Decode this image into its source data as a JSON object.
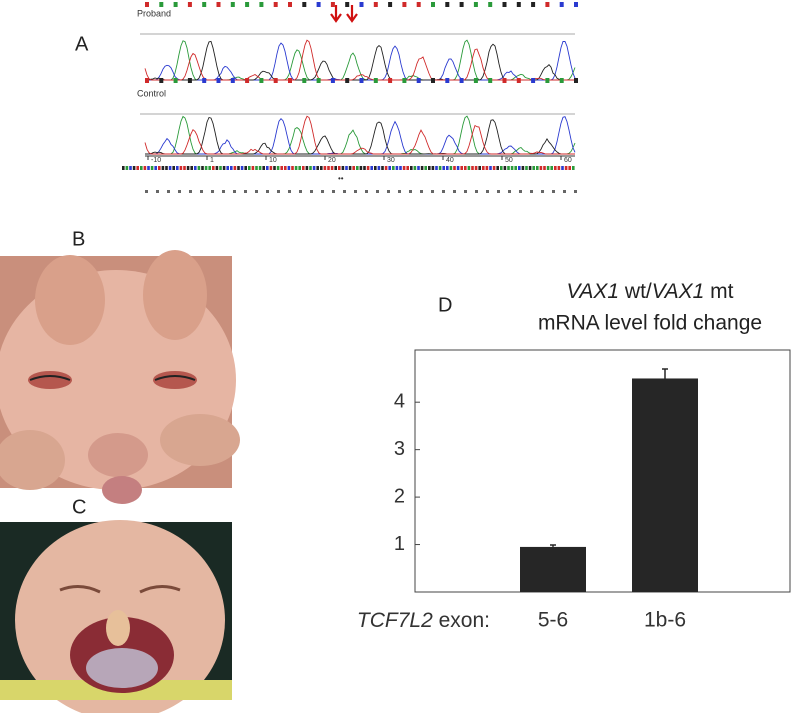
{
  "panel_labels": [
    "A",
    "B",
    "C",
    "D"
  ],
  "chromatogram": {
    "proband_label": "Proband",
    "control_label": "Control",
    "ruler": [
      "-10",
      "1",
      "10",
      "20",
      "30",
      "40",
      "50",
      "60"
    ]
  },
  "chart_data": {
    "type": "bar",
    "title": [
      {
        "text": "VAX1",
        "italic": true
      },
      {
        "text": " wt/"
      },
      {
        "text": "VAX1",
        "italic": true
      },
      {
        "text": " mt"
      }
    ],
    "subtitle": "mRNA level fold change",
    "xlabel": [
      {
        "text": "TCF7L2",
        "italic": true
      },
      {
        "text": " exon:"
      }
    ],
    "categories": [
      "5-6",
      "1b-6"
    ],
    "values": [
      0.95,
      4.5
    ],
    "errors": [
      0.04,
      0.2
    ],
    "color": "#262626",
    "ylim": [
      0,
      5.1
    ],
    "yticks": [
      1,
      2,
      3,
      4
    ]
  }
}
